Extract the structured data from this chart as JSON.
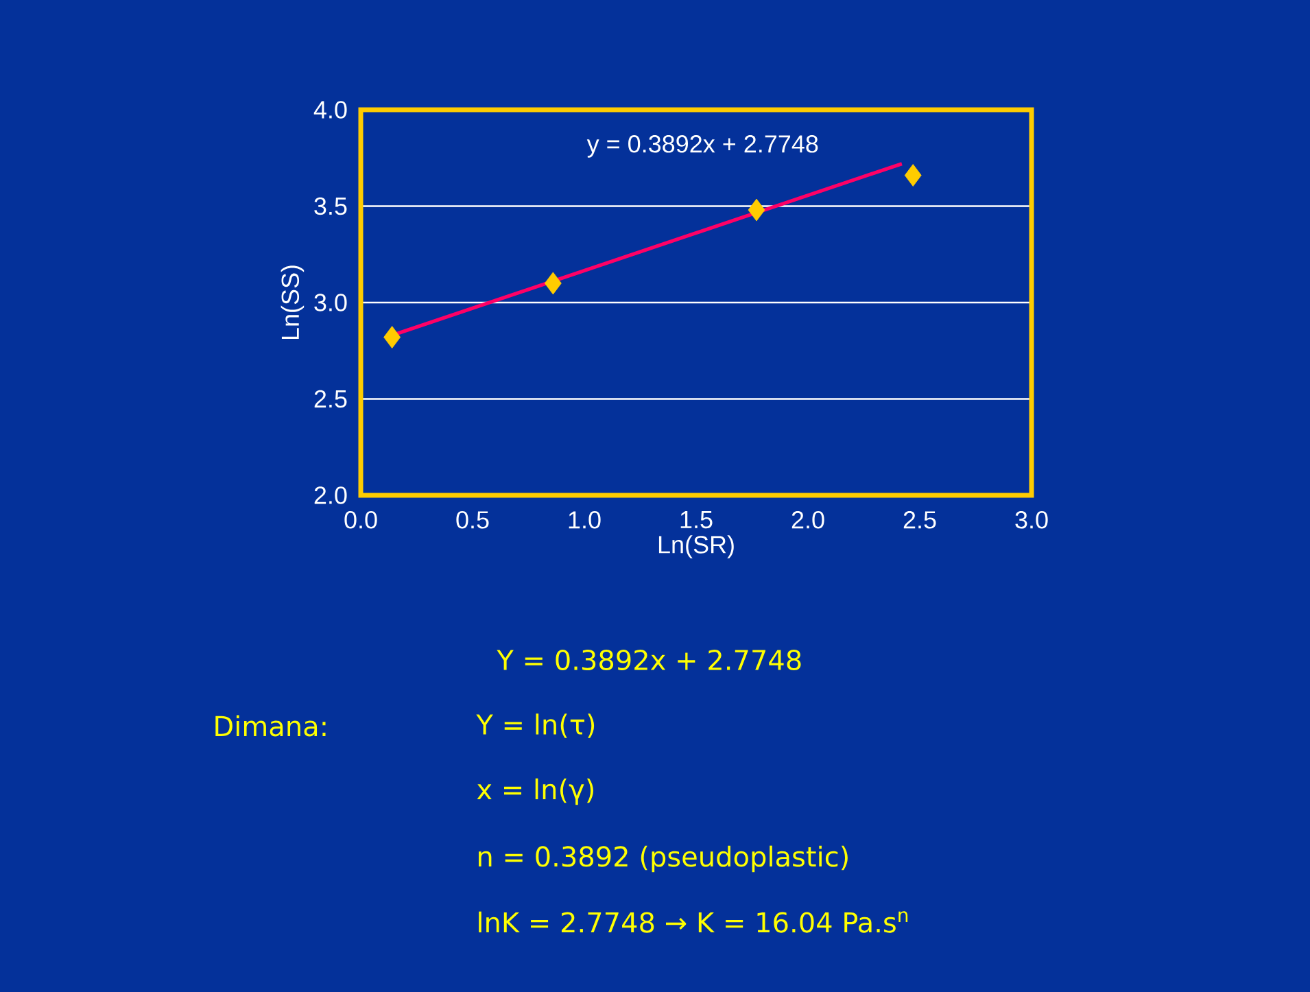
{
  "chart_data": {
    "type": "scatter",
    "xlabel": "Ln(SR)",
    "ylabel": "Ln(SS)",
    "xlim": [
      0,
      3
    ],
    "ylim": [
      2,
      4
    ],
    "xticks": [
      {
        "value": 0,
        "label": "0.0"
      },
      {
        "value": 0.5,
        "label": "0.5"
      },
      {
        "value": 1,
        "label": "1.0"
      },
      {
        "value": 1.5,
        "label": "1.5"
      },
      {
        "value": 2,
        "label": "2.0"
      },
      {
        "value": 2.5,
        "label": "2.5"
      },
      {
        "value": 3,
        "label": "3.0"
      }
    ],
    "yticks": [
      {
        "value": 2,
        "label": "2.0"
      },
      {
        "value": 2.5,
        "label": "2.5"
      },
      {
        "value": 3,
        "label": "3.0"
      },
      {
        "value": 3.5,
        "label": "3.5"
      },
      {
        "value": 4,
        "label": "4.0"
      }
    ],
    "grid": "y",
    "series": [
      {
        "type": "scatter",
        "color": "#ffcc00",
        "marker": "diamond",
        "x": [
          0.14,
          0.86,
          1.77,
          2.47
        ],
        "values": [
          2.82,
          3.1,
          3.48,
          3.66
        ]
      },
      {
        "type": "line",
        "name": "y = 0.3892x + 2.7748",
        "color": "#ff0066",
        "marker": "none",
        "line_style": "solid",
        "x": [
          0.14,
          2.42
        ],
        "values": [
          2.83,
          3.72
        ]
      }
    ],
    "annotations": [
      "Y = 0.3892x + 2.7748",
      "Dimana:",
      "Y = ln(τ)",
      "x = ln(γ)",
      "n = 0.3892 (pseudoplastic)",
      "lnK = 2.7748 → K = 16.04 Pa.s$^{n}$"
    ]
  }
}
